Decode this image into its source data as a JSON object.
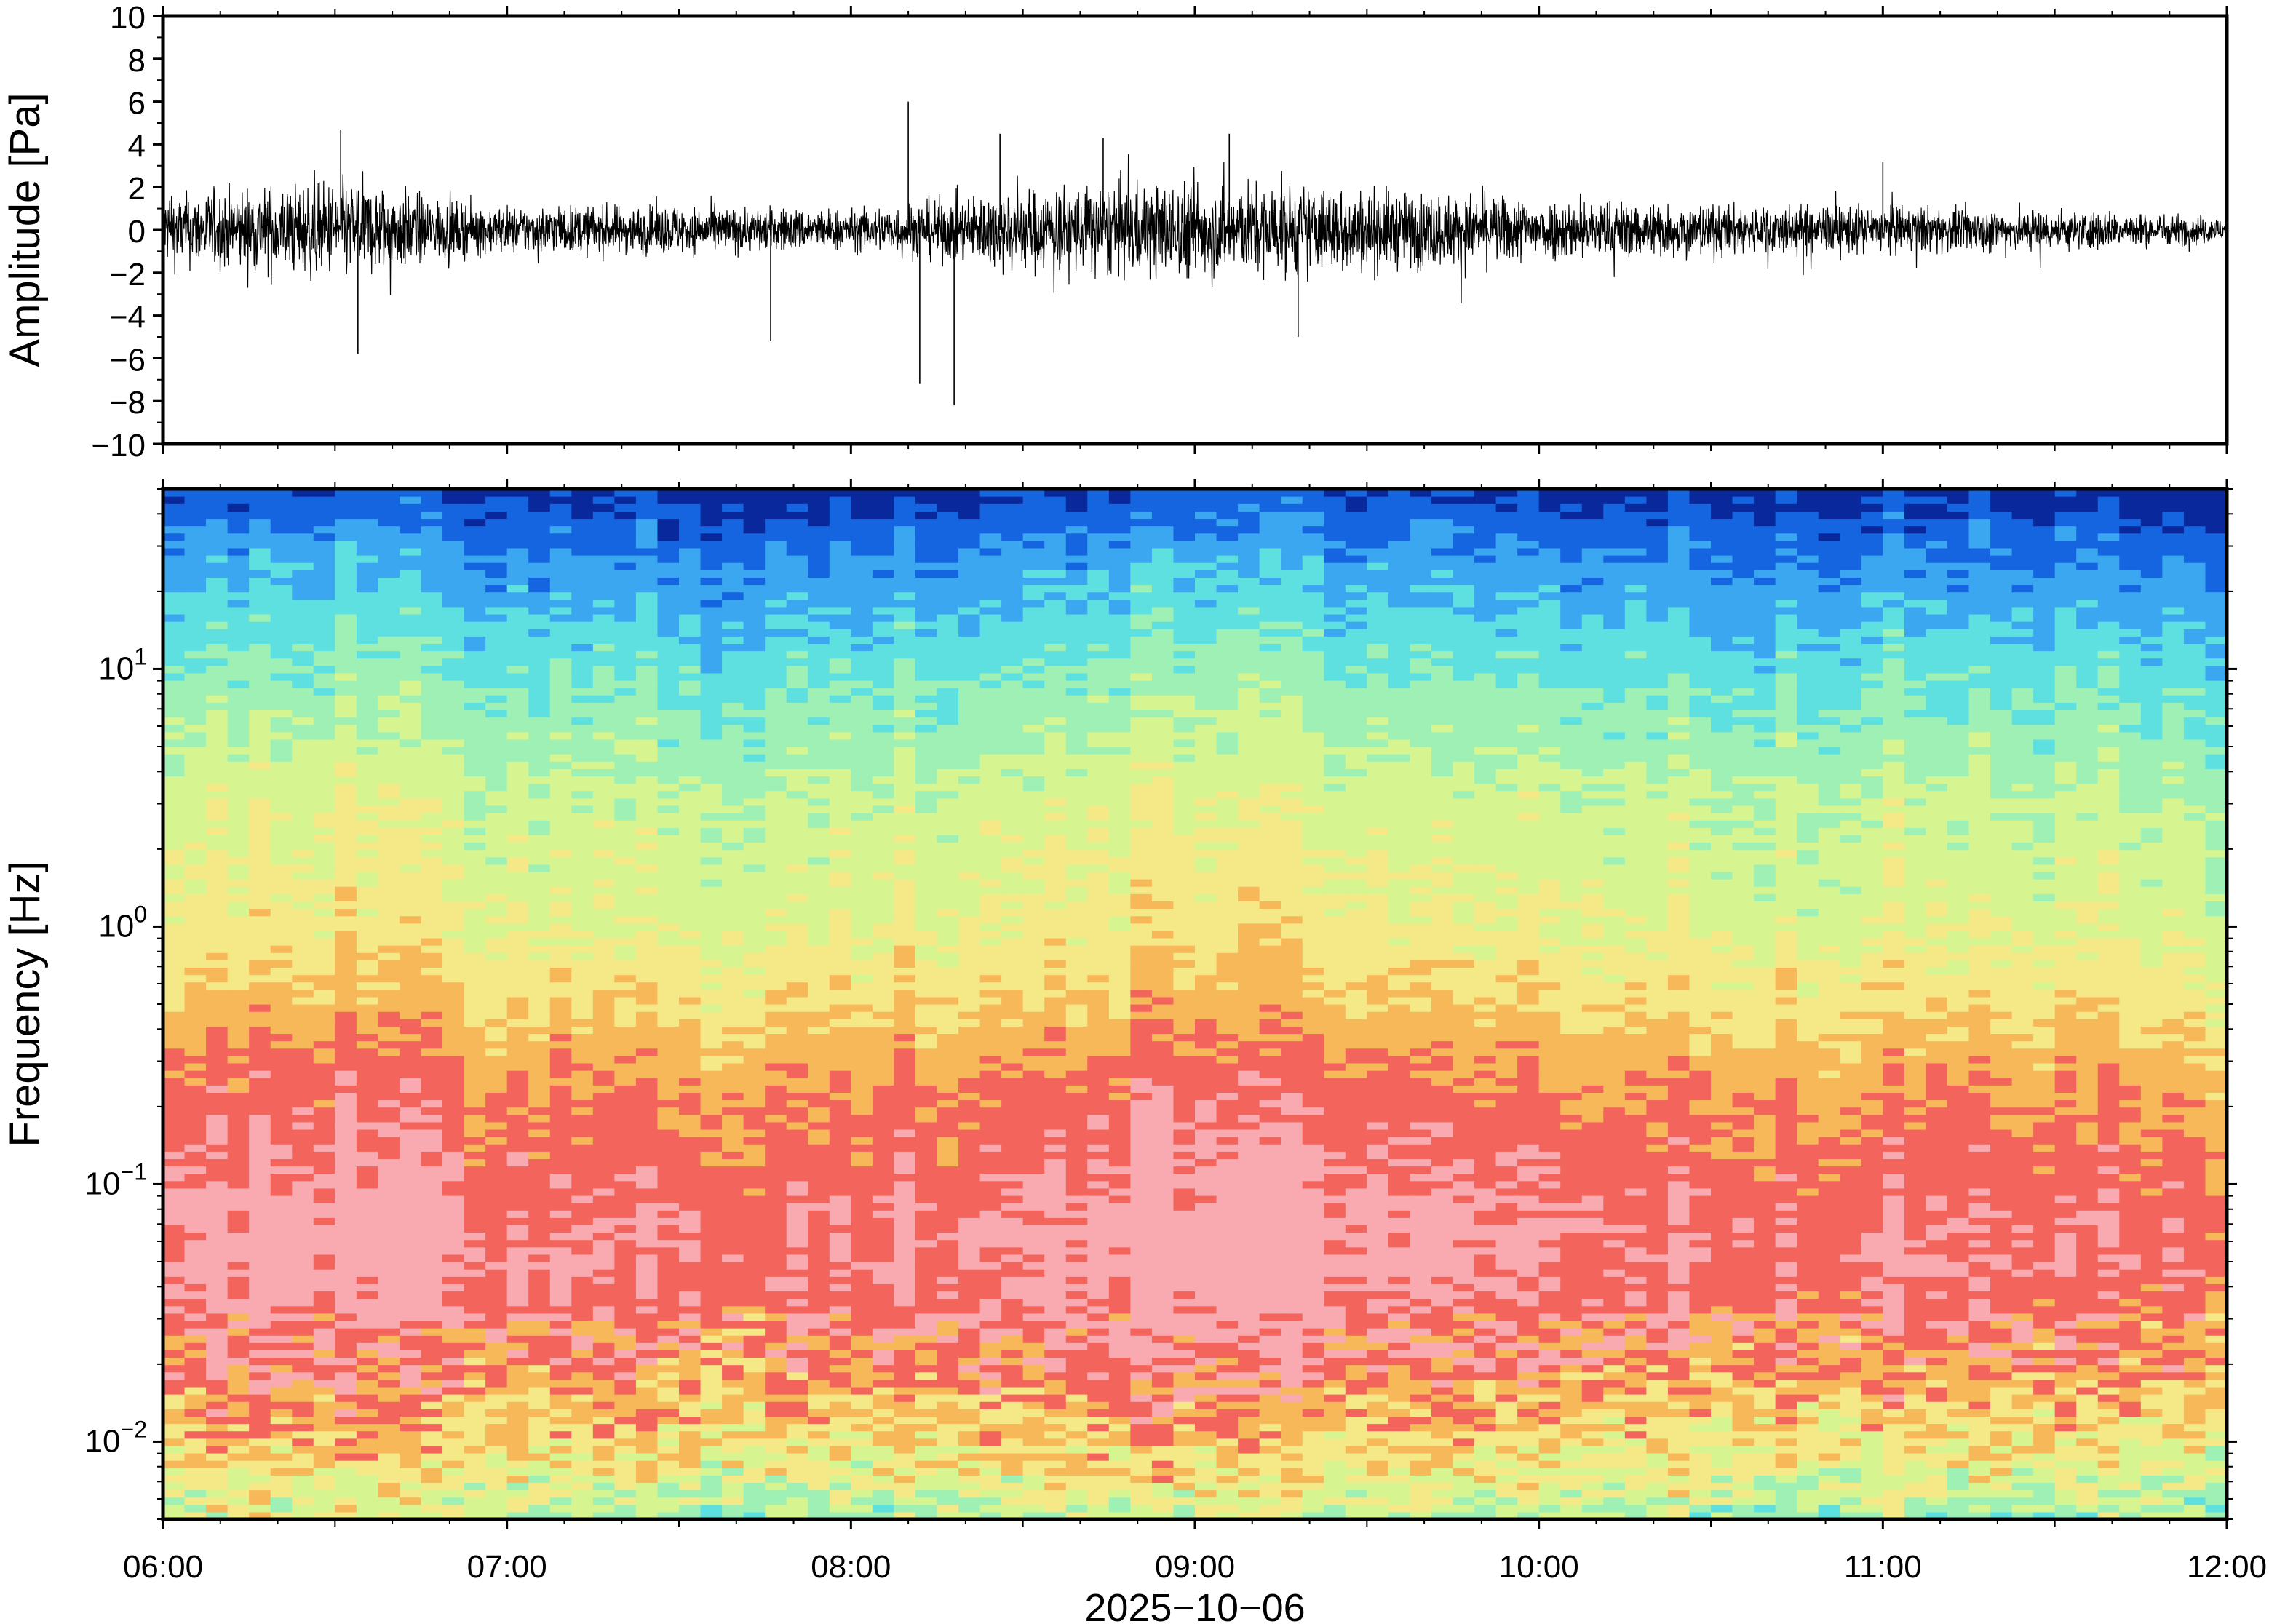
{
  "chart_data": [
    {
      "type": "line",
      "panel": "waveform",
      "ylabel": "Amplitude [Pa]",
      "ylim": [
        -10,
        10
      ],
      "yticks": [
        10,
        8,
        6,
        4,
        2,
        0,
        -2,
        -4,
        -6,
        -8,
        -10
      ],
      "ytick_labels": [
        "10",
        "8",
        "6",
        "4",
        "2",
        "0",
        "−2",
        "−4",
        "−6",
        "−8",
        "−10"
      ],
      "x_range": [
        "06:00",
        "12:00"
      ],
      "line_color": "#000000",
      "envelope_minutes": [
        0,
        10,
        20,
        30,
        40,
        50,
        60,
        90,
        120,
        135,
        150,
        165,
        180,
        210,
        240,
        270,
        300,
        330,
        360
      ],
      "envelope_amplitude": [
        2.0,
        2.3,
        2.6,
        2.8,
        2.5,
        1.6,
        1.4,
        1.4,
        1.2,
        1.8,
        2.4,
        2.7,
        2.8,
        2.4,
        1.8,
        1.5,
        1.4,
        1.2,
        0.8
      ],
      "notable_peaks": [
        {
          "time": "06:31",
          "value": 4.7
        },
        {
          "time": "06:34",
          "value": -5.8
        },
        {
          "time": "07:46",
          "value": -5.2
        },
        {
          "time": "08:10",
          "value": 6.0
        },
        {
          "time": "08:12",
          "value": -7.2
        },
        {
          "time": "08:18",
          "value": -8.2
        },
        {
          "time": "08:26",
          "value": 4.5
        },
        {
          "time": "08:44",
          "value": 4.3
        },
        {
          "time": "09:06",
          "value": 4.5
        },
        {
          "time": "09:18",
          "value": -5.0
        },
        {
          "time": "11:00",
          "value": 3.2
        }
      ]
    },
    {
      "type": "heatmap",
      "panel": "spectrogram",
      "ylabel": "Frequency [Hz]",
      "yscale": "log",
      "ylim": [
        0.005,
        50
      ],
      "yticks": [
        {
          "value": 10,
          "base": "10",
          "exp": "1"
        },
        {
          "value": 1,
          "base": "10",
          "exp": "0"
        },
        {
          "value": 0.1,
          "base": "10",
          "exp": "−1"
        },
        {
          "value": 0.01,
          "base": "10",
          "exp": "−2"
        }
      ],
      "xlabel": "2025−10−06",
      "xticks": [
        "06:00",
        "07:00",
        "08:00",
        "09:00",
        "10:00",
        "11:00",
        "12:00"
      ],
      "colormap": [
        "#08289c",
        "#1565e0",
        "#3aa7f0",
        "#5fe0e0",
        "#9ef0b4",
        "#d6f591",
        "#f5e887",
        "#f7b85a",
        "#f2645c",
        "#f9aab0"
      ],
      "relative_power_by_band": [
        {
          "log10_freq": -2.3,
          "level": 4.6
        },
        {
          "log10_freq": -2.0,
          "level": 6.4
        },
        {
          "log10_freq": -1.7,
          "level": 7.8
        },
        {
          "log10_freq": -1.3,
          "level": 8.7
        },
        {
          "log10_freq": -1.0,
          "level": 8.4
        },
        {
          "log10_freq": -0.6,
          "level": 7.6
        },
        {
          "log10_freq": -0.3,
          "level": 6.5
        },
        {
          "log10_freq": 0.0,
          "level": 5.6
        },
        {
          "log10_freq": 0.5,
          "level": 4.9
        },
        {
          "log10_freq": 1.0,
          "level": 3.4
        },
        {
          "log10_freq": 1.4,
          "level": 1.9
        },
        {
          "log10_freq": 1.7,
          "level": 0.3
        }
      ]
    }
  ]
}
